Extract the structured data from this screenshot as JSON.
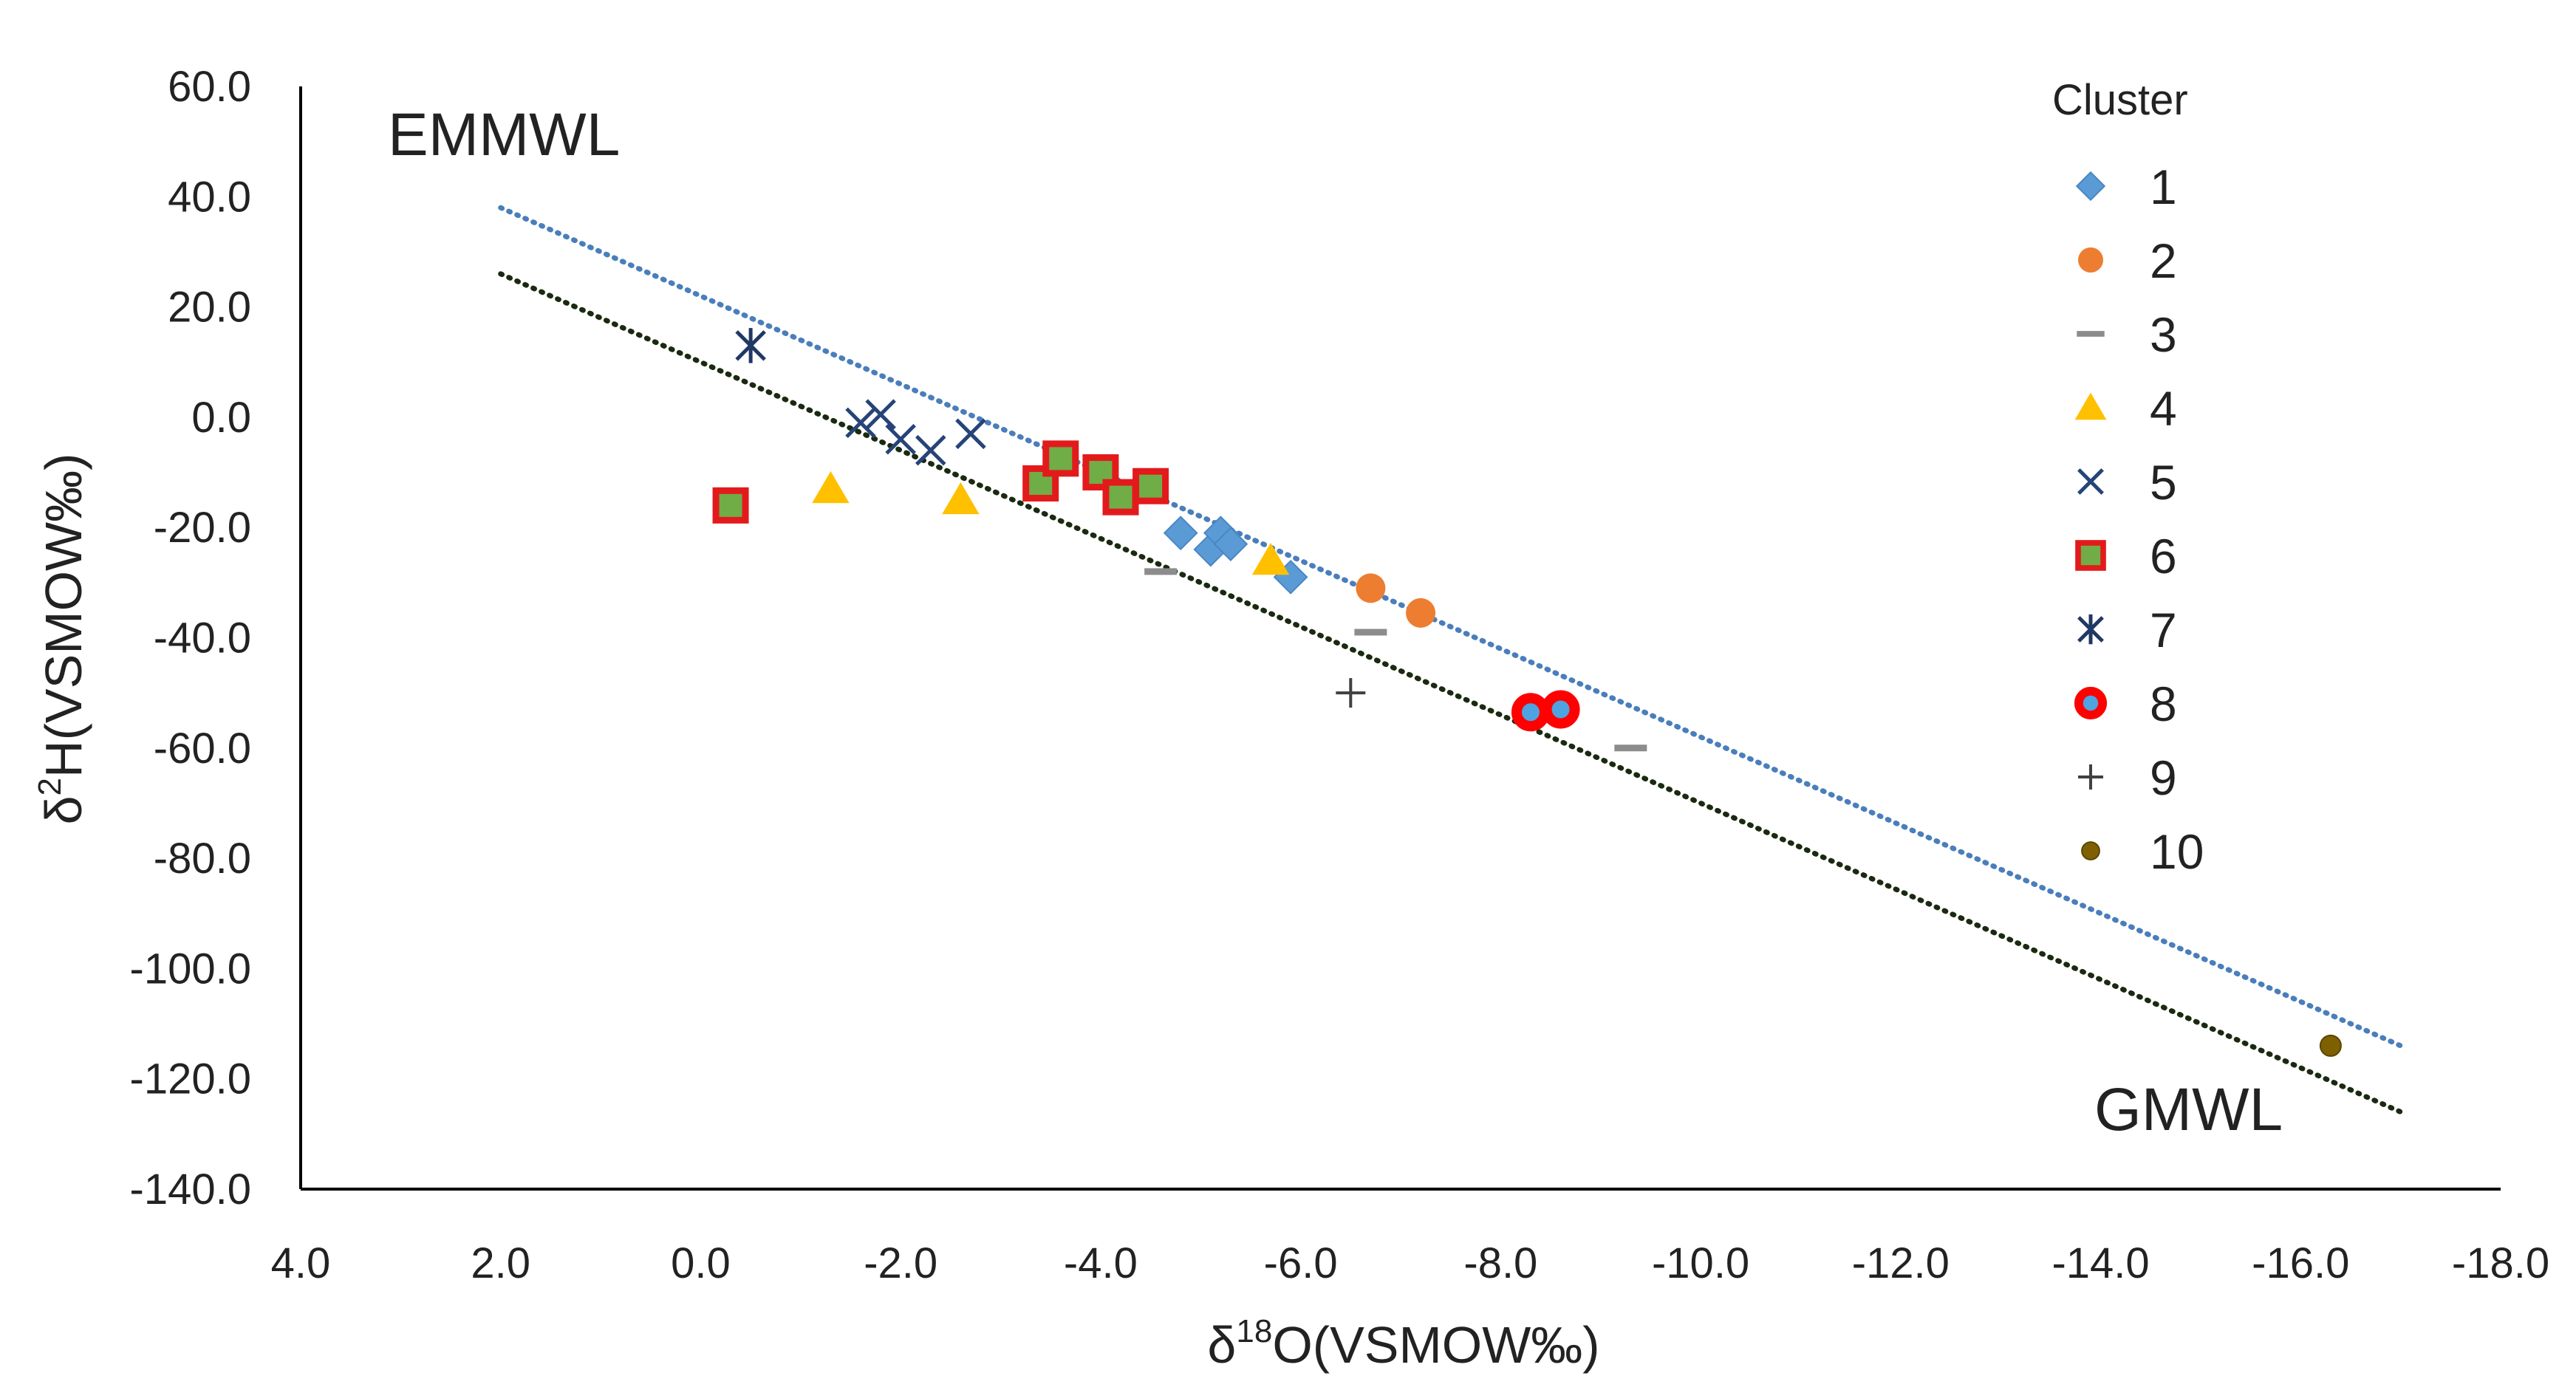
{
  "chart_data": {
    "type": "scatter",
    "title": "",
    "xlabel": "δ18O(VSMOW‰)",
    "xlabel_parts": {
      "base": "δ",
      "sup": "18",
      "rest": "O(VSMOW‰)"
    },
    "ylabel": "δ2H(VSMOW‰)",
    "ylabel_parts": {
      "base": "δ",
      "sup": "2",
      "rest": "H(VSMOW‰)"
    },
    "xlim": [
      4.0,
      -18.0
    ],
    "ylim": [
      -140.0,
      60.0
    ],
    "x_ticks": [
      "4.0",
      "2.0",
      "0.0",
      "-2.0",
      "-4.0",
      "-6.0",
      "-8.0",
      "-10.0",
      "-12.0",
      "-14.0",
      "-16.0",
      "-18.0"
    ],
    "y_ticks": [
      "60.0",
      "40.0",
      "20.0",
      "0.0",
      "-20.0",
      "-40.0",
      "-60.0",
      "-80.0",
      "-100.0",
      "-120.0",
      "-140.0"
    ],
    "legend": {
      "title": "Cluster",
      "position": "right"
    },
    "lines": [
      {
        "name": "EMMWL",
        "label": "EMMWL",
        "color": "#4a7ebb",
        "style": "dotted",
        "x": [
          2.0,
          -17.0
        ],
        "y": [
          38.0,
          -114.0
        ]
      },
      {
        "name": "GMWL",
        "label": "GMWL",
        "color": "#1a2a10",
        "style": "dotted",
        "x": [
          2.0,
          -17.0
        ],
        "y": [
          26.0,
          -126.0
        ]
      }
    ],
    "series": [
      {
        "name": "1",
        "marker": "diamond",
        "color": "#5b9bd5",
        "points": [
          [
            -4.8,
            -21.0
          ],
          [
            -5.1,
            -24.0
          ],
          [
            -5.2,
            -21.0
          ],
          [
            -5.3,
            -23.0
          ],
          [
            -5.9,
            -29.0
          ]
        ]
      },
      {
        "name": "2",
        "marker": "circle",
        "color": "#ed7d31",
        "points": [
          [
            -6.7,
            -31.0
          ],
          [
            -7.2,
            -35.5
          ]
        ]
      },
      {
        "name": "3",
        "marker": "dash",
        "color": "#8c8c8c",
        "points": [
          [
            -4.6,
            -28.0
          ],
          [
            -6.7,
            -39.0
          ],
          [
            -9.3,
            -60.0
          ]
        ]
      },
      {
        "name": "4",
        "marker": "triangle",
        "color": "#ffc000",
        "points": [
          [
            -1.3,
            -13.0
          ],
          [
            -2.6,
            -15.0
          ],
          [
            -5.7,
            -26.0
          ]
        ]
      },
      {
        "name": "5",
        "marker": "x",
        "color": "#264478",
        "points": [
          [
            -1.6,
            -1.0
          ],
          [
            -1.8,
            0.5
          ],
          [
            -2.0,
            -4.0
          ],
          [
            -2.3,
            -6.0
          ],
          [
            -2.7,
            -3.0
          ]
        ]
      },
      {
        "name": "6",
        "marker": "square-outlined",
        "color": "#70ad47",
        "edge": "#e31a1c",
        "points": [
          [
            -0.3,
            -16.0
          ],
          [
            -3.4,
            -12.0
          ],
          [
            -3.6,
            -7.5
          ],
          [
            -4.0,
            -10.0
          ],
          [
            -4.2,
            -14.5
          ],
          [
            -4.5,
            -12.5
          ]
        ]
      },
      {
        "name": "7",
        "marker": "star",
        "color": "#1f3864",
        "points": [
          [
            -0.5,
            13.0
          ]
        ]
      },
      {
        "name": "8",
        "marker": "ring",
        "color": "#4fa3e0",
        "edge": "#ff0000",
        "points": [
          [
            -8.3,
            -53.5
          ],
          [
            -8.6,
            -53.0
          ]
        ]
      },
      {
        "name": "9",
        "marker": "plus",
        "color": "#404040",
        "points": [
          [
            -6.5,
            -50.0
          ]
        ]
      },
      {
        "name": "10",
        "marker": "small-circle",
        "color": "#7f6000",
        "points": [
          [
            -16.3,
            -114.0
          ]
        ]
      }
    ]
  }
}
